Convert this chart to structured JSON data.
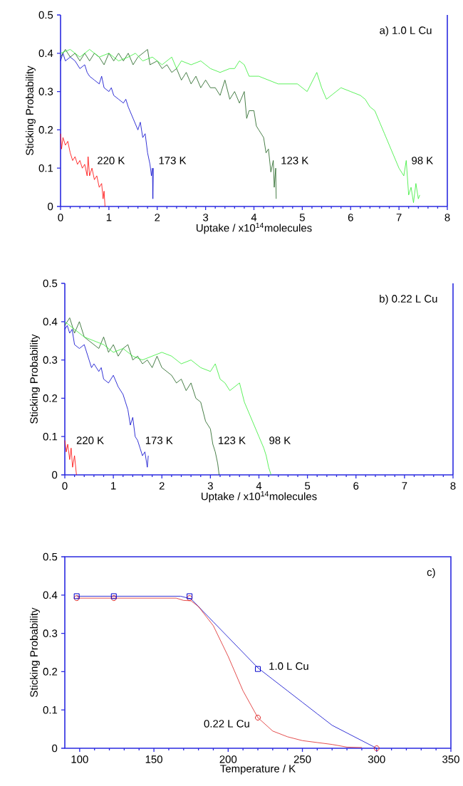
{
  "chart_data": [
    {
      "type": "line",
      "xlabel": "Uptake / x10$^{14}$molecules",
      "ylabel": "Sticking Probability",
      "annotations": [
        "a) 1.0 L Cu"
      ],
      "xlim": [
        0,
        8
      ],
      "ylim": [
        0,
        0.5
      ],
      "xticks": [
        0,
        1,
        2,
        3,
        4,
        5,
        6,
        7,
        8
      ],
      "yticks": [
        0,
        0.1,
        0.2,
        0.3,
        0.4,
        0.5
      ],
      "series": [
        {
          "name": "220 K",
          "color": "#ff0000",
          "x": [
            0,
            0.02,
            0.05,
            0.1,
            0.15,
            0.2,
            0.25,
            0.3,
            0.35,
            0.4,
            0.45,
            0.5,
            0.55,
            0.57,
            0.6,
            0.65,
            0.7,
            0.75,
            0.8,
            0.85,
            0.88,
            0.9,
            0.92
          ],
          "values": [
            0.19,
            0.15,
            0.18,
            0.16,
            0.17,
            0.14,
            0.12,
            0.13,
            0.11,
            0.12,
            0.1,
            0.11,
            0.08,
            0.13,
            0.08,
            0.1,
            0.07,
            0.08,
            0.05,
            0.06,
            0.02,
            0.04,
            0.0
          ]
        },
        {
          "name": "173 K",
          "color": "#0000cc",
          "x": [
            0,
            0.05,
            0.1,
            0.2,
            0.3,
            0.4,
            0.5,
            0.55,
            0.6,
            0.7,
            0.8,
            0.85,
            0.9,
            1.0,
            1.05,
            1.1,
            1.2,
            1.3,
            1.35,
            1.4,
            1.5,
            1.6,
            1.65,
            1.7,
            1.75,
            1.8,
            1.85,
            1.88,
            1.9,
            1.91,
            1.92
          ],
          "values": [
            0.38,
            0.4,
            0.38,
            0.39,
            0.38,
            0.36,
            0.37,
            0.35,
            0.34,
            0.33,
            0.32,
            0.34,
            0.31,
            0.3,
            0.31,
            0.29,
            0.28,
            0.27,
            0.28,
            0.26,
            0.23,
            0.2,
            0.22,
            0.18,
            0.19,
            0.14,
            0.11,
            0.08,
            0.1,
            0.02,
            0.1
          ]
        },
        {
          "name": "123 K",
          "color": "#1a5e1a",
          "x": [
            0,
            0.1,
            0.2,
            0.3,
            0.4,
            0.5,
            0.6,
            0.7,
            0.8,
            0.9,
            1.0,
            1.1,
            1.2,
            1.3,
            1.4,
            1.5,
            1.6,
            1.8,
            1.85,
            2.0,
            2.1,
            2.2,
            2.3,
            2.4,
            2.5,
            2.6,
            2.7,
            2.8,
            2.9,
            3.0,
            3.1,
            3.2,
            3.3,
            3.4,
            3.5,
            3.6,
            3.7,
            3.8,
            3.85,
            3.9,
            4.0,
            4.05,
            4.1,
            4.2,
            4.25,
            4.3,
            4.35,
            4.4,
            4.42,
            4.45,
            4.46
          ],
          "values": [
            0.39,
            0.41,
            0.39,
            0.4,
            0.38,
            0.4,
            0.38,
            0.4,
            0.39,
            0.37,
            0.4,
            0.38,
            0.4,
            0.38,
            0.4,
            0.37,
            0.39,
            0.41,
            0.37,
            0.38,
            0.36,
            0.37,
            0.35,
            0.36,
            0.33,
            0.35,
            0.32,
            0.34,
            0.31,
            0.33,
            0.31,
            0.31,
            0.29,
            0.33,
            0.28,
            0.3,
            0.27,
            0.3,
            0.23,
            0.25,
            0.25,
            0.21,
            0.2,
            0.18,
            0.14,
            0.15,
            0.09,
            0.12,
            0.05,
            0.1,
            0.02
          ]
        },
        {
          "name": "98 K",
          "color": "#33ee33",
          "x": [
            0,
            0.2,
            0.4,
            0.6,
            0.8,
            1.0,
            1.2,
            1.4,
            1.55,
            1.7,
            1.9,
            2.1,
            2.3,
            2.4,
            2.5,
            2.7,
            2.9,
            3.1,
            3.3,
            3.5,
            3.6,
            3.7,
            3.8,
            3.9,
            4.1,
            4.3,
            4.5,
            4.7,
            4.9,
            5.1,
            5.3,
            5.4,
            5.5,
            5.6,
            5.7,
            5.8,
            6.0,
            6.2,
            6.3,
            6.4,
            6.5,
            6.6,
            6.7,
            6.8,
            6.9,
            7.0,
            7.1,
            7.15,
            7.2,
            7.25,
            7.3,
            7.35,
            7.4,
            7.43
          ],
          "values": [
            0.4,
            0.41,
            0.39,
            0.41,
            0.39,
            0.4,
            0.38,
            0.39,
            0.4,
            0.38,
            0.39,
            0.37,
            0.39,
            0.36,
            0.38,
            0.37,
            0.38,
            0.36,
            0.35,
            0.36,
            0.36,
            0.38,
            0.37,
            0.34,
            0.34,
            0.33,
            0.32,
            0.32,
            0.32,
            0.3,
            0.35,
            0.31,
            0.28,
            0.29,
            0.3,
            0.31,
            0.3,
            0.29,
            0.28,
            0.26,
            0.25,
            0.22,
            0.19,
            0.16,
            0.13,
            0.1,
            0.08,
            0.12,
            0.03,
            0.05,
            0.01,
            0.06,
            0.02,
            0.03
          ]
        }
      ]
    },
    {
      "type": "line",
      "xlabel": "Uptake / x10$^{14}$molecules",
      "ylabel": "Sticking Probability",
      "annotations": [
        "b) 0.22 L Cu"
      ],
      "xlim": [
        0,
        8
      ],
      "ylim": [
        0,
        0.5
      ],
      "xticks": [
        0,
        1,
        2,
        3,
        4,
        5,
        6,
        7,
        8
      ],
      "yticks": [
        0,
        0.1,
        0.2,
        0.3,
        0.4,
        0.5
      ],
      "series": [
        {
          "name": "220 K",
          "color": "#ff0000",
          "x": [
            0,
            0.03,
            0.06,
            0.1,
            0.13,
            0.16,
            0.2,
            0.24
          ],
          "values": [
            0.09,
            0.06,
            0.08,
            0.04,
            0.07,
            0.02,
            0.05,
            0.0
          ]
        },
        {
          "name": "173 K",
          "color": "#0000cc",
          "x": [
            0,
            0.05,
            0.1,
            0.15,
            0.2,
            0.3,
            0.4,
            0.5,
            0.55,
            0.6,
            0.7,
            0.75,
            0.8,
            0.9,
            1.0,
            1.1,
            1.2,
            1.3,
            1.35,
            1.4,
            1.45,
            1.5,
            1.55,
            1.6,
            1.65,
            1.7,
            1.72
          ],
          "values": [
            0.38,
            0.39,
            0.37,
            0.38,
            0.34,
            0.33,
            0.34,
            0.3,
            0.28,
            0.29,
            0.27,
            0.28,
            0.25,
            0.24,
            0.26,
            0.23,
            0.21,
            0.17,
            0.13,
            0.15,
            0.1,
            0.09,
            0.07,
            0.05,
            0.06,
            0.02,
            0.05
          ]
        },
        {
          "name": "123 K",
          "color": "#1a5e1a",
          "x": [
            0,
            0.1,
            0.2,
            0.3,
            0.4,
            0.5,
            0.6,
            0.7,
            0.8,
            0.9,
            1.0,
            1.1,
            1.2,
            1.3,
            1.4,
            1.5,
            1.6,
            1.7,
            1.8,
            1.9,
            2.0,
            2.1,
            2.2,
            2.3,
            2.4,
            2.5,
            2.6,
            2.7,
            2.8,
            2.9,
            3.0,
            3.05,
            3.1,
            3.15,
            3.18
          ],
          "values": [
            0.39,
            0.41,
            0.37,
            0.4,
            0.36,
            0.35,
            0.34,
            0.33,
            0.36,
            0.32,
            0.34,
            0.31,
            0.33,
            0.34,
            0.3,
            0.31,
            0.29,
            0.3,
            0.28,
            0.31,
            0.28,
            0.27,
            0.26,
            0.24,
            0.25,
            0.22,
            0.24,
            0.2,
            0.19,
            0.14,
            0.12,
            0.08,
            0.06,
            0.03,
            0.0
          ]
        },
        {
          "name": "98 K",
          "color": "#33ee33",
          "x": [
            0,
            0.2,
            0.4,
            0.6,
            0.8,
            1.0,
            1.2,
            1.4,
            1.6,
            1.8,
            2.0,
            2.2,
            2.4,
            2.6,
            2.8,
            3.0,
            3.1,
            3.2,
            3.3,
            3.4,
            3.5,
            3.6,
            3.7,
            3.8,
            3.9,
            4.0,
            4.1,
            4.15,
            4.2,
            4.25
          ],
          "values": [
            0.4,
            0.38,
            0.36,
            0.35,
            0.34,
            0.32,
            0.33,
            0.31,
            0.3,
            0.31,
            0.32,
            0.31,
            0.29,
            0.3,
            0.28,
            0.27,
            0.29,
            0.25,
            0.24,
            0.22,
            0.23,
            0.24,
            0.19,
            0.16,
            0.13,
            0.1,
            0.07,
            0.05,
            0.02,
            0.0
          ]
        }
      ]
    },
    {
      "type": "line",
      "xlabel": "Temperature / K",
      "ylabel": "Sticking Probability",
      "annotations": [
        "c)"
      ],
      "xlim": [
        90,
        350
      ],
      "ylim": [
        0,
        0.5
      ],
      "xticks": [
        100,
        150,
        200,
        250,
        300,
        350
      ],
      "yticks": [
        0,
        0.1,
        0.2,
        0.3,
        0.4,
        0.5
      ],
      "series": [
        {
          "name": "1.0 L Cu",
          "type": "line",
          "color": "#0000cc",
          "x": [
            98,
            123,
            168,
            175,
            180,
            190,
            200,
            210,
            220,
            230,
            240,
            250,
            260,
            270,
            280,
            290,
            300
          ],
          "values": [
            0.397,
            0.397,
            0.397,
            0.39,
            0.37,
            0.33,
            0.29,
            0.25,
            0.21,
            0.18,
            0.15,
            0.12,
            0.09,
            0.06,
            0.04,
            0.02,
            0.0
          ]
        },
        {
          "name": "0.22 L Cu",
          "type": "line",
          "color": "#dd2222",
          "x": [
            98,
            165,
            170,
            175,
            180,
            190,
            200,
            210,
            220,
            230,
            240,
            250,
            260,
            270,
            280,
            290
          ],
          "values": [
            0.392,
            0.392,
            0.386,
            0.385,
            0.37,
            0.32,
            0.24,
            0.15,
            0.08,
            0.045,
            0.03,
            0.02,
            0.015,
            0.01,
            0.003,
            0.002
          ]
        },
        {
          "type": "scatter",
          "marker": "circle",
          "color": "#dd2222",
          "x": [
            98,
            123,
            174,
            220,
            300
          ],
          "values": [
            0.392,
            0.392,
            0.392,
            0.08,
            0.0
          ]
        },
        {
          "type": "scatter",
          "marker": "square",
          "color": "#0000cc",
          "x": [
            98,
            123,
            174,
            220
          ],
          "values": [
            0.397,
            0.397,
            0.397,
            0.207
          ]
        }
      ]
    }
  ]
}
